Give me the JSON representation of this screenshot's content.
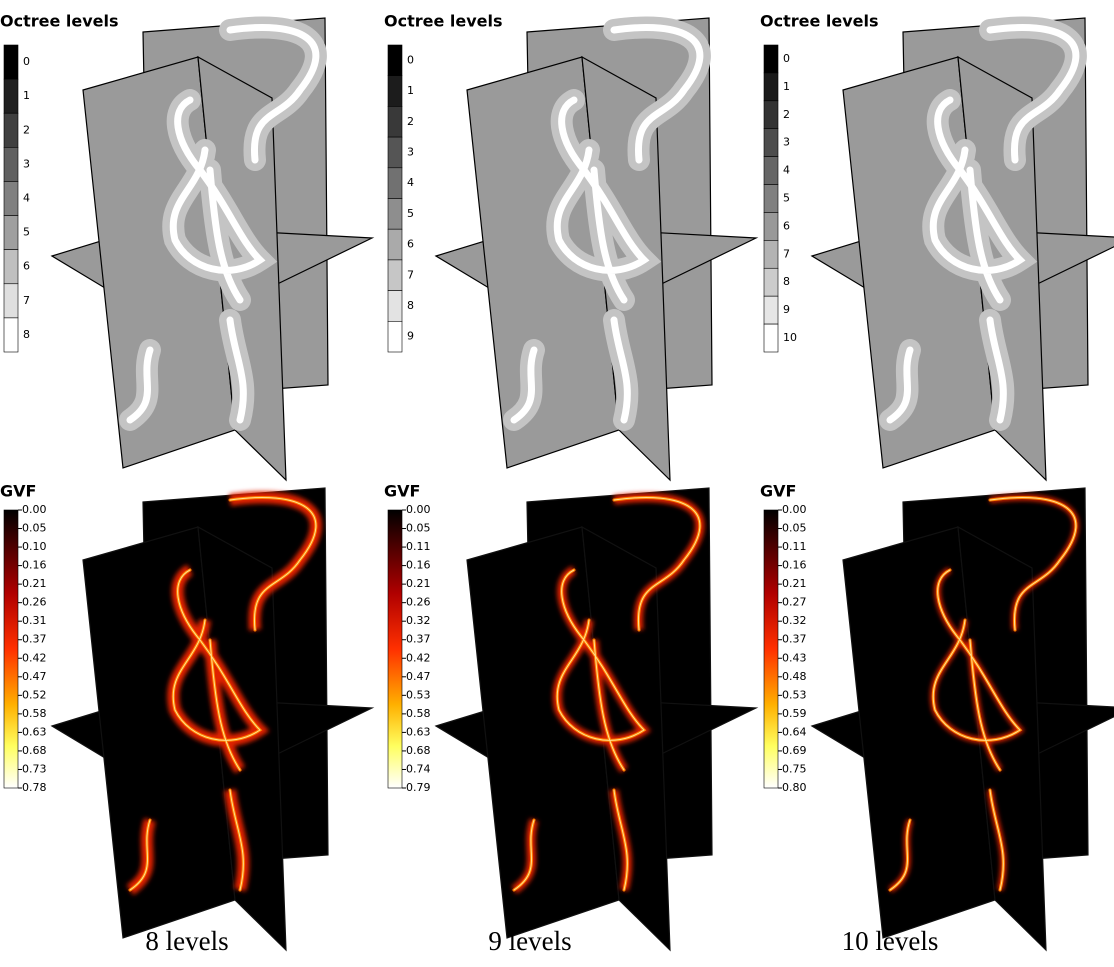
{
  "columns": [
    {
      "caption": "8 levels",
      "octree": {
        "title": "Octree levels",
        "labels": [
          "0",
          "1",
          "2",
          "3",
          "4",
          "5",
          "6",
          "7",
          "8"
        ]
      },
      "gvf": {
        "title": "GVF",
        "labels": [
          "0.00",
          "0.05",
          "0.10",
          "0.16",
          "0.21",
          "0.26",
          "0.31",
          "0.37",
          "0.42",
          "0.47",
          "0.52",
          "0.58",
          "0.63",
          "0.68",
          "0.73",
          "0.78"
        ]
      }
    },
    {
      "caption": "9 levels",
      "octree": {
        "title": "Octree levels",
        "labels": [
          "0",
          "1",
          "2",
          "3",
          "4",
          "5",
          "6",
          "7",
          "8",
          "9"
        ]
      },
      "gvf": {
        "title": "GVF",
        "labels": [
          "0.00",
          "0.05",
          "0.11",
          "0.16",
          "0.21",
          "0.26",
          "0.32",
          "0.37",
          "0.42",
          "0.47",
          "0.53",
          "0.58",
          "0.63",
          "0.68",
          "0.74",
          "0.79"
        ]
      }
    },
    {
      "caption": "10 levels",
      "octree": {
        "title": "Octree levels",
        "labels": [
          "0",
          "1",
          "2",
          "3",
          "4",
          "5",
          "6",
          "7",
          "8",
          "9",
          "10"
        ]
      },
      "gvf": {
        "title": "GVF",
        "labels": [
          "0.00",
          "0.05",
          "0.11",
          "0.16",
          "0.21",
          "0.27",
          "0.32",
          "0.37",
          "0.43",
          "0.48",
          "0.53",
          "0.59",
          "0.64",
          "0.69",
          "0.75",
          "0.80"
        ]
      }
    }
  ]
}
